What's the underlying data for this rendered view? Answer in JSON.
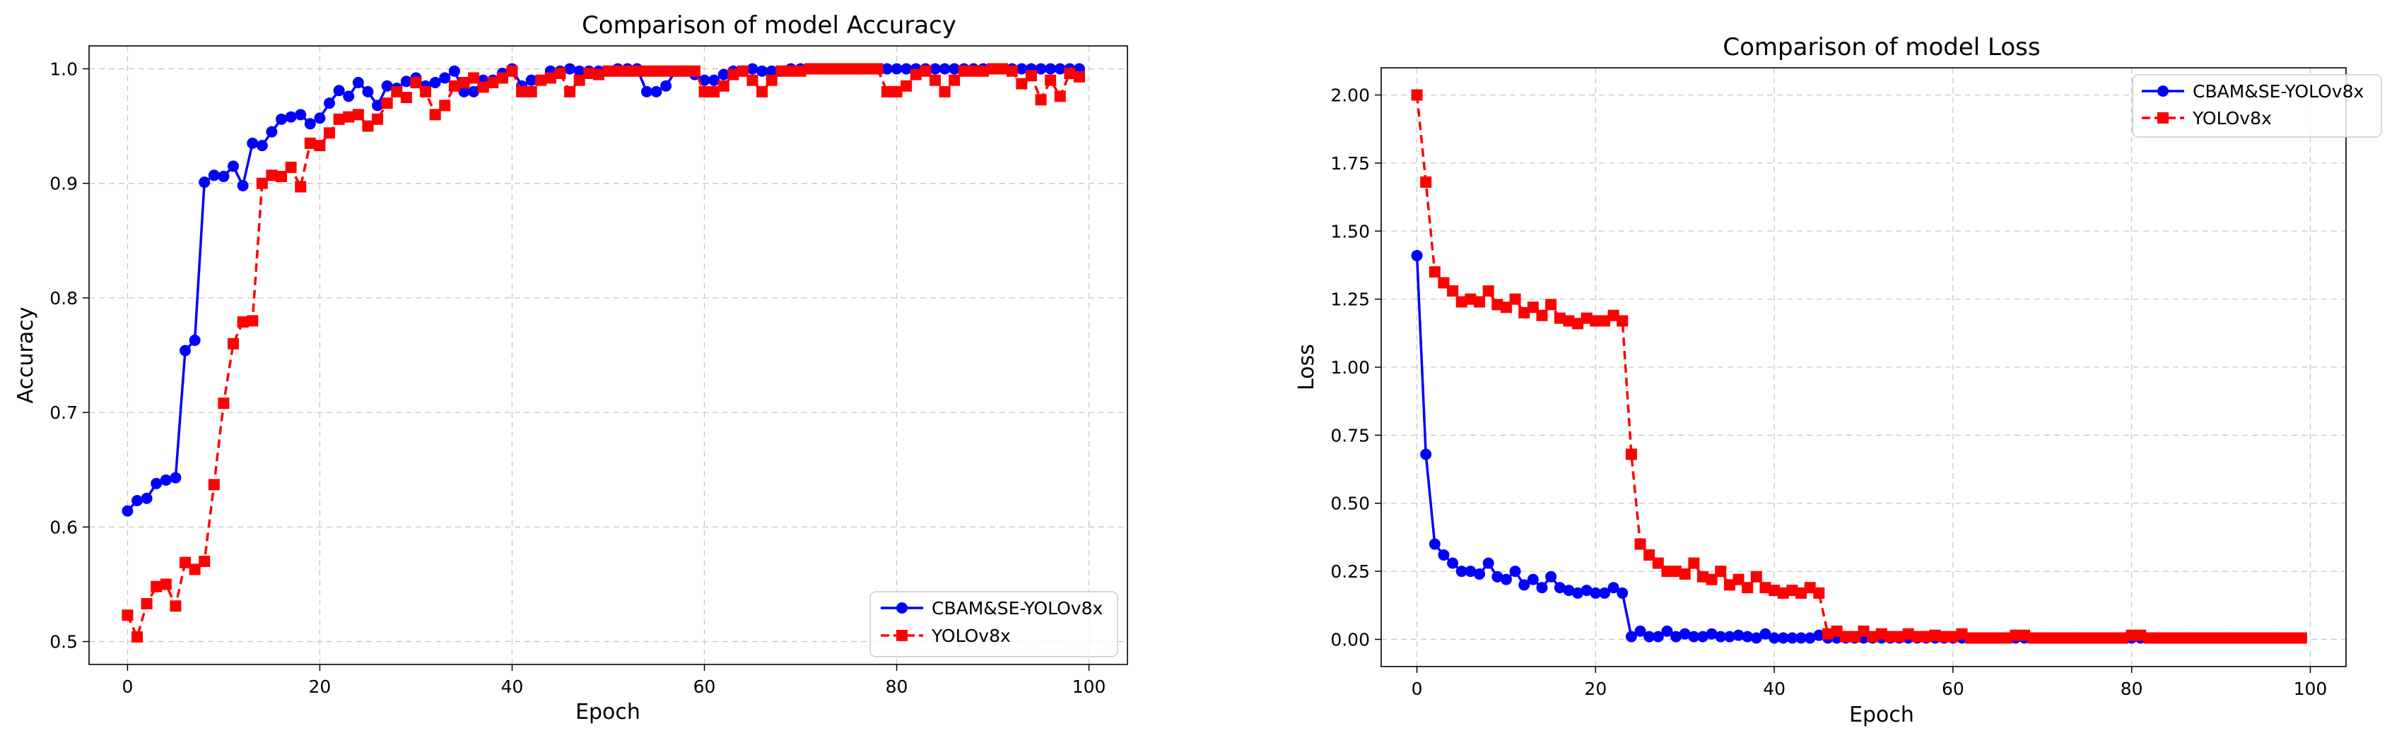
{
  "chart_data": [
    {
      "type": "line",
      "title": "Comparison of model Accuracy",
      "xlabel": "Epoch",
      "ylabel": "Accuracy",
      "xlim": [
        -4,
        104
      ],
      "ylim": [
        0.48,
        1.02
      ],
      "xticks": [
        0,
        20,
        40,
        60,
        80,
        100
      ],
      "yticks": [
        0.5,
        0.6,
        0.7,
        0.8,
        0.9,
        1.0
      ],
      "ytick_labels": [
        "0.5",
        "0.6",
        "0.7",
        "0.8",
        "0.9",
        "1.0"
      ],
      "grid": true,
      "legend": "lower-right",
      "series": [
        {
          "name": "CBAM&SE-YOLOv8x",
          "color": "#0000ff",
          "marker": "circle",
          "linestyle": "solid",
          "x_start": 0,
          "values": [
            0.614,
            0.623,
            0.625,
            0.638,
            0.641,
            0.643,
            0.754,
            0.763,
            0.901,
            0.907,
            0.906,
            0.915,
            0.898,
            0.935,
            0.933,
            0.945,
            0.956,
            0.958,
            0.96,
            0.952,
            0.957,
            0.97,
            0.981,
            0.976,
            0.988,
            0.98,
            0.968,
            0.985,
            0.983,
            0.989,
            0.992,
            0.985,
            0.988,
            0.992,
            0.998,
            0.98,
            0.98,
            0.99,
            0.99,
            0.996,
            1.0,
            0.985,
            0.99,
            0.99,
            0.998,
            0.998,
            1.0,
            0.998,
            0.998,
            0.998,
            0.998,
            1.0,
            1.0,
            1.0,
            0.98,
            0.98,
            0.985,
            0.998,
            0.998,
            0.995,
            0.99,
            0.99,
            0.995,
            0.998,
            0.998,
            1.0,
            0.998,
            0.998,
            0.998,
            1.0,
            1.0,
            1.0,
            1.0,
            1.0,
            1.0,
            1.0,
            1.0,
            1.0,
            1.0,
            1.0,
            1.0,
            1.0,
            1.0,
            1.0,
            1.0,
            1.0,
            1.0,
            1.0,
            1.0,
            1.0,
            1.0,
            1.0,
            1.0,
            1.0,
            1.0,
            1.0,
            1.0,
            1.0,
            1.0,
            1.0
          ]
        },
        {
          "name": "YOLOv8x",
          "color": "#ff0000",
          "marker": "square",
          "linestyle": "dashed",
          "x_start": 0,
          "values": [
            0.523,
            0.504,
            0.533,
            0.548,
            0.55,
            0.531,
            0.569,
            0.563,
            0.57,
            0.637,
            0.708,
            0.76,
            0.779,
            0.78,
            0.9,
            0.907,
            0.906,
            0.914,
            0.897,
            0.935,
            0.933,
            0.944,
            0.956,
            0.958,
            0.96,
            0.95,
            0.956,
            0.97,
            0.98,
            0.975,
            0.988,
            0.98,
            0.96,
            0.968,
            0.985,
            0.988,
            0.992,
            0.984,
            0.988,
            0.992,
            0.998,
            0.98,
            0.98,
            0.99,
            0.992,
            0.996,
            0.98,
            0.99,
            0.996,
            0.995,
            0.998,
            0.998,
            0.998,
            0.998,
            0.998,
            0.998,
            0.998,
            0.998,
            0.998,
            0.998,
            0.98,
            0.98,
            0.985,
            0.995,
            0.998,
            0.99,
            0.98,
            0.99,
            0.998,
            0.998,
            0.998,
            1.0,
            1.0,
            1.0,
            1.0,
            1.0,
            1.0,
            1.0,
            1.0,
            0.98,
            0.98,
            0.985,
            0.995,
            0.998,
            0.99,
            0.98,
            0.99,
            0.998,
            0.998,
            0.998,
            1.0,
            1.0,
            0.998,
            0.987,
            0.994,
            0.973,
            0.99,
            0.976,
            0.996,
            0.993
          ]
        }
      ]
    },
    {
      "type": "line",
      "title": "Comparison of model Loss",
      "xlabel": "Epoch",
      "ylabel": "Loss",
      "xlim": [
        -4,
        104
      ],
      "ylim": [
        -0.1,
        2.1
      ],
      "xticks": [
        0,
        20,
        40,
        60,
        80,
        100
      ],
      "yticks": [
        0.0,
        0.25,
        0.5,
        0.75,
        1.0,
        1.25,
        1.5,
        1.75,
        2.0
      ],
      "ytick_labels": [
        "0.00",
        "0.25",
        "0.50",
        "0.75",
        "1.00",
        "1.25",
        "1.50",
        "1.75",
        "2.00"
      ],
      "grid": true,
      "legend": "upper-right",
      "series": [
        {
          "name": "CBAM&SE-YOLOv8x",
          "color": "#0000ff",
          "marker": "circle",
          "linestyle": "solid",
          "x_start": 0,
          "values": [
            1.41,
            0.68,
            0.35,
            0.31,
            0.28,
            0.25,
            0.25,
            0.24,
            0.28,
            0.23,
            0.22,
            0.25,
            0.2,
            0.22,
            0.19,
            0.23,
            0.19,
            0.18,
            0.17,
            0.18,
            0.17,
            0.17,
            0.19,
            0.17,
            0.01,
            0.03,
            0.01,
            0.01,
            0.03,
            0.01,
            0.02,
            0.01,
            0.01,
            0.02,
            0.01,
            0.01,
            0.015,
            0.01,
            0.005,
            0.02,
            0.005,
            0.005,
            0.005,
            0.005,
            0.005,
            0.015,
            0.005,
            0.005,
            0.005,
            0.005,
            0.005,
            0.005,
            0.005,
            0.005,
            0.005,
            0.005,
            0.005,
            0.005,
            0.005,
            0.005,
            0.005,
            0.005,
            0.005,
            0.005,
            0.005,
            0.005,
            0.005,
            0.005,
            0.005,
            0.005,
            0.005,
            0.005,
            0.005,
            0.005,
            0.005,
            0.005,
            0.005,
            0.005,
            0.005,
            0.005,
            0.005,
            0.005,
            0.005,
            0.005,
            0.005,
            0.005,
            0.005,
            0.005,
            0.005,
            0.005,
            0.005,
            0.005,
            0.005,
            0.005,
            0.005,
            0.005,
            0.005,
            0.005,
            0.005,
            0.005
          ]
        },
        {
          "name": "YOLOv8x",
          "color": "#ff0000",
          "marker": "square",
          "linestyle": "dashed",
          "x_start": 0,
          "values": [
            2.0,
            1.68,
            1.35,
            1.31,
            1.28,
            1.24,
            1.25,
            1.24,
            1.28,
            1.23,
            1.22,
            1.25,
            1.2,
            1.22,
            1.19,
            1.23,
            1.18,
            1.17,
            1.16,
            1.18,
            1.17,
            1.17,
            1.19,
            1.17,
            0.68,
            0.35,
            0.31,
            0.28,
            0.25,
            0.25,
            0.24,
            0.28,
            0.23,
            0.22,
            0.25,
            0.2,
            0.22,
            0.19,
            0.23,
            0.19,
            0.18,
            0.17,
            0.18,
            0.17,
            0.19,
            0.17,
            0.02,
            0.03,
            0.01,
            0.01,
            0.03,
            0.01,
            0.02,
            0.01,
            0.01,
            0.02,
            0.01,
            0.01,
            0.015,
            0.01,
            0.01,
            0.02,
            0.005,
            0.005,
            0.005,
            0.005,
            0.005,
            0.015,
            0.015,
            0.005,
            0.005,
            0.005,
            0.005,
            0.005,
            0.005,
            0.005,
            0.005,
            0.005,
            0.005,
            0.005,
            0.015,
            0.015,
            0.005,
            0.005,
            0.005,
            0.005,
            0.005,
            0.005,
            0.005,
            0.005,
            0.005,
            0.005,
            0.005,
            0.005,
            0.005,
            0.005,
            0.005,
            0.005,
            0.005,
            0.005
          ]
        }
      ]
    }
  ]
}
